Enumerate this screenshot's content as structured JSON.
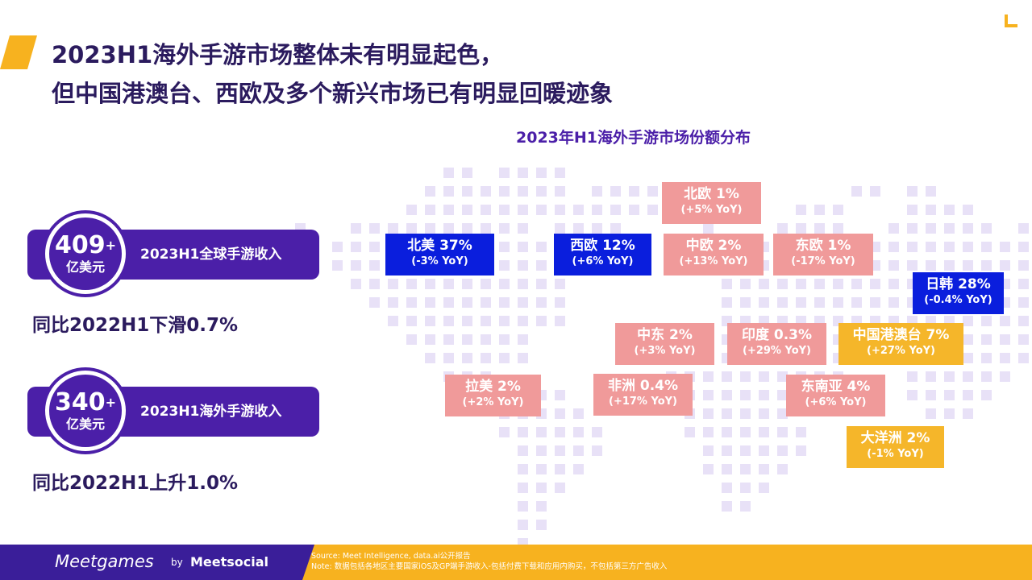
{
  "title": {
    "line1": "2023H1海外手游市场整体未有明显起色，",
    "line2": "但中国港澳台、西欧及多个新兴市场已有明显回暖迹象"
  },
  "map_title": "2023年H1海外手游市场份额分布",
  "kpis": [
    {
      "value": "409",
      "plus": "+",
      "unit": "亿美元",
      "label": "2023H1全球手游收入",
      "note": "同比2022H1下滑0.7%"
    },
    {
      "value": "340",
      "plus": "+",
      "unit": "亿美元",
      "label": "2023H1海外手游收入",
      "note": "同比2022H1上升1.0%"
    }
  ],
  "regions": {
    "north_america": {
      "name": "北美 37%",
      "yoy": "(-3% YoY)"
    },
    "west_europe": {
      "name": "西欧 12%",
      "yoy": "(+6% YoY)"
    },
    "north_europe": {
      "name": "北欧 1%",
      "yoy": "(+5% YoY)"
    },
    "central_europe": {
      "name": "中欧 2%",
      "yoy": "(+13% YoY)"
    },
    "east_europe": {
      "name": "东欧 1%",
      "yoy": "(-17% YoY)"
    },
    "japan_korea": {
      "name": "日韩 28%",
      "yoy": "(-0.4% YoY)"
    },
    "middle_east": {
      "name": "中东 2%",
      "yoy": "(+3% YoY)"
    },
    "india": {
      "name": "印度 0.3%",
      "yoy": "(+29% YoY)"
    },
    "greater_china": {
      "name": "中国港澳台 7%",
      "yoy": "(+27% YoY)"
    },
    "latam": {
      "name": "拉美 2%",
      "yoy": "(+2% YoY)"
    },
    "africa": {
      "name": "非洲 0.4%",
      "yoy": "(+17% YoY)"
    },
    "sea": {
      "name": "东南亚 4%",
      "yoy": "(+6% YoY)"
    },
    "oceania": {
      "name": "大洋洲 2%",
      "yoy": "(-1% YoY)"
    }
  },
  "footer": {
    "brand": "Meetgames",
    "by": "by",
    "brand2": "Meetsocial",
    "source": "Source: Meet Intelligence,  data.ai公开报告",
    "note": "Note: 数据包括各地区主要国家iOS及GP端手游收入-包括付费下载和应用内购买，不包括第三方广告收入"
  },
  "colors": {
    "major": "#0A1EDD",
    "minor": "#F09A9A",
    "asia_highlight": "#F5B62A",
    "purple": "#4B1FA8",
    "accent": "#F7B21F"
  }
}
